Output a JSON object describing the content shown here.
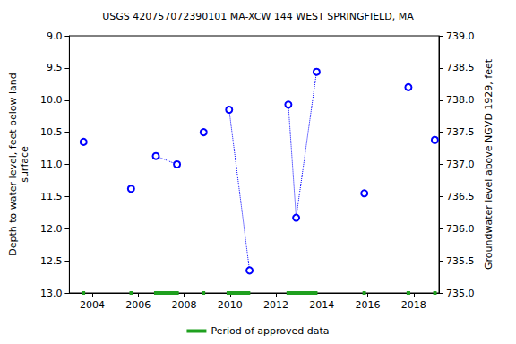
{
  "chart_data": {
    "type": "scatter",
    "title": "USGS 420757072390101 MA-XCW 144 WEST SPRINGFIELD, MA",
    "y_label": "Depth to water level, feet below land\nsurface",
    "y2_label": "Groundwater level above NGVD 1929, feet",
    "xlim": [
      2003.0,
      2019.1
    ],
    "xticks": [
      2004,
      2006,
      2008,
      2010,
      2012,
      2014,
      2016,
      2018
    ],
    "ylim": [
      9.0,
      13.0
    ],
    "yticks": [
      {
        "value": 9.0,
        "label": "9.0"
      },
      9.5,
      {
        "value": 10.0,
        "label": "10.0"
      },
      10.5,
      {
        "value": 11.0,
        "label": "11.0"
      },
      11.5,
      {
        "value": 12.0,
        "label": "12.0"
      },
      12.5,
      {
        "value": 13.0,
        "label": "13.0"
      }
    ],
    "y2lim": [
      735.0,
      739.0
    ],
    "y2ticks": [
      {
        "value": 735.0,
        "label": "735.0"
      },
      735.5,
      {
        "value": 736.0,
        "label": "736.0"
      },
      736.5,
      {
        "value": 737.0,
        "label": "737.0"
      },
      737.5,
      {
        "value": 738.0,
        "label": "738.0"
      },
      738.5,
      {
        "value": 739.0,
        "label": "739.0"
      }
    ],
    "grid": false,
    "legend": "bottom",
    "series": [
      {
        "x": [
          2003.62
        ],
        "values": [
          10.65
        ],
        "color": "#0000ff",
        "marker": "circle",
        "line_style": "none"
      },
      {
        "x": [
          2005.69
        ],
        "values": [
          11.38
        ],
        "color": "#0000ff",
        "marker": "circle",
        "line_style": "none"
      },
      {
        "x": [
          2006.77,
          2007.69
        ],
        "values": [
          10.87,
          11.0
        ],
        "color": "#0000ff",
        "marker": "circle",
        "line_style": "dotted"
      },
      {
        "x": [
          2008.85
        ],
        "values": [
          10.5
        ],
        "color": "#0000ff",
        "marker": "circle",
        "line_style": "none"
      },
      {
        "x": [
          2009.96,
          2010.85
        ],
        "values": [
          10.15,
          12.65
        ],
        "color": "#0000ff",
        "marker": "circle",
        "line_style": "dotted"
      },
      {
        "x": [
          2012.54,
          2012.88,
          2013.77
        ],
        "values": [
          10.07,
          11.83,
          9.56
        ],
        "color": "#0000ff",
        "marker": "circle",
        "line_style": "dotted"
      },
      {
        "x": [
          2015.85
        ],
        "values": [
          11.45
        ],
        "color": "#0000ff",
        "marker": "circle",
        "line_style": "none"
      },
      {
        "x": [
          2017.77
        ],
        "values": [
          9.8
        ],
        "color": "#0000ff",
        "marker": "circle",
        "line_style": "none"
      },
      {
        "x": [
          2018.92
        ],
        "values": [
          10.62
        ],
        "color": "#0000ff",
        "marker": "circle",
        "line_style": "none"
      },
      {
        "name": "Period of approved data",
        "type": "span",
        "color": "#1fa01f",
        "x_ranges": [
          [
            2003.54,
            2003.69
          ],
          [
            2005.62,
            2005.77
          ],
          [
            2006.69,
            2007.77
          ],
          [
            2008.77,
            2008.92
          ],
          [
            2009.85,
            2010.88
          ],
          [
            2012.46,
            2013.81
          ],
          [
            2015.77,
            2015.92
          ],
          [
            2017.69,
            2017.85
          ],
          [
            2018.85,
            2019.0
          ]
        ]
      }
    ]
  }
}
